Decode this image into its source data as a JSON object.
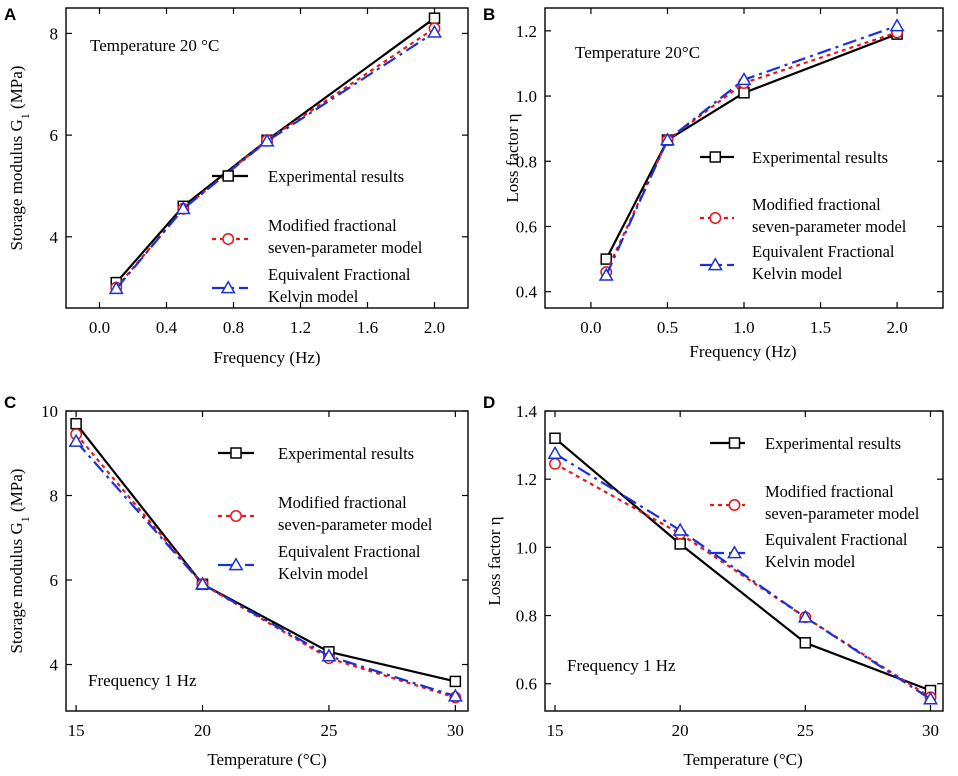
{
  "colors": {
    "experimental": "#000000",
    "modified": "#e8141b",
    "kelvin": "#1732d6"
  },
  "chart_data": [
    {
      "panel": "A",
      "type": "line",
      "annotation": "Temperature 20 °C",
      "xlabel": "Frequency (Hz)",
      "ylabel": "Storage modulus G",
      "ylabel_sub": "1",
      "ylabel_unit": " (MPa)",
      "xlim": [
        -0.2,
        2.2
      ],
      "ylim": [
        2.6,
        8.5
      ],
      "xticks": [
        0.0,
        0.4,
        0.8,
        1.2,
        1.6,
        2.0
      ],
      "xtick_labels": [
        "0.0",
        "0.4",
        "0.8",
        "1.2",
        "1.6",
        "2.0"
      ],
      "yticks": [
        4,
        6,
        8
      ],
      "ytick_labels": [
        "4",
        "6",
        "8"
      ],
      "legend_position": "center-right",
      "series": [
        {
          "name": "Experimental results",
          "name_lines": [
            "Experimental results"
          ],
          "style": "experimental",
          "x": [
            0.1,
            0.5,
            1.0,
            2.0
          ],
          "y": [
            3.1,
            4.6,
            5.9,
            8.3
          ]
        },
        {
          "name": "Modified fractional seven-parameter model",
          "name_lines": [
            "Modified fractional",
            "seven-parameter model"
          ],
          "style": "modified",
          "x": [
            0.1,
            0.5,
            1.0,
            2.0
          ],
          "y": [
            3.0,
            4.55,
            5.9,
            8.1
          ]
        },
        {
          "name": "Equivalent Fractional Kelvin model",
          "name_lines": [
            "Equivalent Fractional",
            "Kelvin model"
          ],
          "style": "kelvin",
          "x": [
            0.1,
            0.5,
            1.0,
            2.0
          ],
          "y": [
            2.98,
            4.55,
            5.88,
            8.02
          ]
        }
      ]
    },
    {
      "panel": "B",
      "type": "line",
      "annotation": "Temperature 20°C",
      "xlabel": "Frequency (Hz)",
      "ylabel": "Loss factor η",
      "ylabel_sub": "",
      "ylabel_unit": "",
      "xlim": [
        -0.3,
        2.3
      ],
      "ylim": [
        0.35,
        1.27
      ],
      "xticks": [
        0.0,
        0.5,
        1.0,
        1.5,
        2.0
      ],
      "xtick_labels": [
        "0.0",
        "0.5",
        "1.0",
        "1.5",
        "2.0"
      ],
      "yticks": [
        0.4,
        0.6,
        0.8,
        1.0,
        1.2
      ],
      "ytick_labels": [
        "0.4",
        "0.6",
        "0.8",
        "1.0",
        "1.2"
      ],
      "legend_position": "center-right",
      "series": [
        {
          "name": "Experimental results",
          "name_lines": [
            "Experimental results"
          ],
          "style": "experimental",
          "x": [
            0.1,
            0.5,
            1.0,
            2.0
          ],
          "y": [
            0.5,
            0.865,
            1.01,
            1.19
          ]
        },
        {
          "name": "Modified fractional seven-parameter model",
          "name_lines": [
            "Modified fractional",
            "seven-parameter model"
          ],
          "style": "modified",
          "x": [
            0.1,
            0.5,
            1.0,
            2.0
          ],
          "y": [
            0.46,
            0.865,
            1.04,
            1.195
          ]
        },
        {
          "name": "Equivalent Fractional Kelvin model",
          "name_lines": [
            "Equivalent Fractional",
            "Kelvin model"
          ],
          "style": "kelvin",
          "x": [
            0.1,
            0.5,
            1.0,
            2.0
          ],
          "y": [
            0.45,
            0.865,
            1.05,
            1.215
          ]
        }
      ]
    },
    {
      "panel": "C",
      "type": "line",
      "annotation": "Frequency 1 Hz",
      "xlabel": "Temperature (°C)",
      "ylabel": "Storage modulus G",
      "ylabel_sub": "1",
      "ylabel_unit": " (MPa)",
      "xlim": [
        14.6,
        30.5
      ],
      "ylim": [
        2.9,
        10.0
      ],
      "xticks": [
        15,
        20,
        25,
        30
      ],
      "xtick_labels": [
        "15",
        "20",
        "25",
        "30"
      ],
      "yticks": [
        4,
        6,
        8,
        10
      ],
      "ytick_labels": [
        "4",
        "6",
        "8",
        "10"
      ],
      "legend_position": "upper-right",
      "series": [
        {
          "name": "Experimental results",
          "name_lines": [
            "Experimental results"
          ],
          "style": "experimental",
          "x": [
            15,
            20,
            25,
            30
          ],
          "y": [
            9.7,
            5.9,
            4.3,
            3.6
          ]
        },
        {
          "name": "Modified fractional seven-parameter model",
          "name_lines": [
            "Modified fractional",
            "seven-parameter model"
          ],
          "style": "modified",
          "x": [
            15,
            20,
            25,
            30
          ],
          "y": [
            9.45,
            5.9,
            4.15,
            3.22
          ]
        },
        {
          "name": "Equivalent Fractional Kelvin model",
          "name_lines": [
            "Equivalent Fractional",
            "Kelvin model"
          ],
          "style": "kelvin",
          "x": [
            15,
            20,
            25,
            30
          ],
          "y": [
            9.28,
            5.9,
            4.2,
            3.25
          ]
        }
      ]
    },
    {
      "panel": "D",
      "type": "line",
      "annotation": "Frequency 1 Hz",
      "xlabel": "Temperature (°C)",
      "ylabel": "Loss factor η",
      "ylabel_sub": "",
      "ylabel_unit": "",
      "xlim": [
        14.6,
        30.5
      ],
      "ylim": [
        0.52,
        1.4
      ],
      "xticks": [
        15,
        20,
        25,
        30
      ],
      "xtick_labels": [
        "15",
        "20",
        "25",
        "30"
      ],
      "yticks": [
        0.6,
        0.8,
        1.0,
        1.2,
        1.4
      ],
      "ytick_labels": [
        "0.6",
        "0.8",
        "1.0",
        "1.2",
        "1.4"
      ],
      "legend_position": "upper-right",
      "series": [
        {
          "name": "Experimental results",
          "name_lines": [
            "Experimental results"
          ],
          "style": "experimental",
          "x": [
            15,
            20,
            25,
            30
          ],
          "y": [
            1.32,
            1.01,
            0.72,
            0.58
          ]
        },
        {
          "name": "Modified fractional seven-parameter model",
          "name_lines": [
            "Modified fractional",
            "seven-parameter model"
          ],
          "style": "modified",
          "x": [
            15,
            20,
            25,
            30
          ],
          "y": [
            1.245,
            1.04,
            0.795,
            0.56
          ]
        },
        {
          "name": "Equivalent Fractional Kelvin model",
          "name_lines": [
            "Equivalent Fractional",
            "Kelvin model"
          ],
          "style": "kelvin",
          "x": [
            15,
            20,
            25,
            30
          ],
          "y": [
            1.275,
            1.05,
            0.795,
            0.555
          ]
        }
      ]
    }
  ]
}
